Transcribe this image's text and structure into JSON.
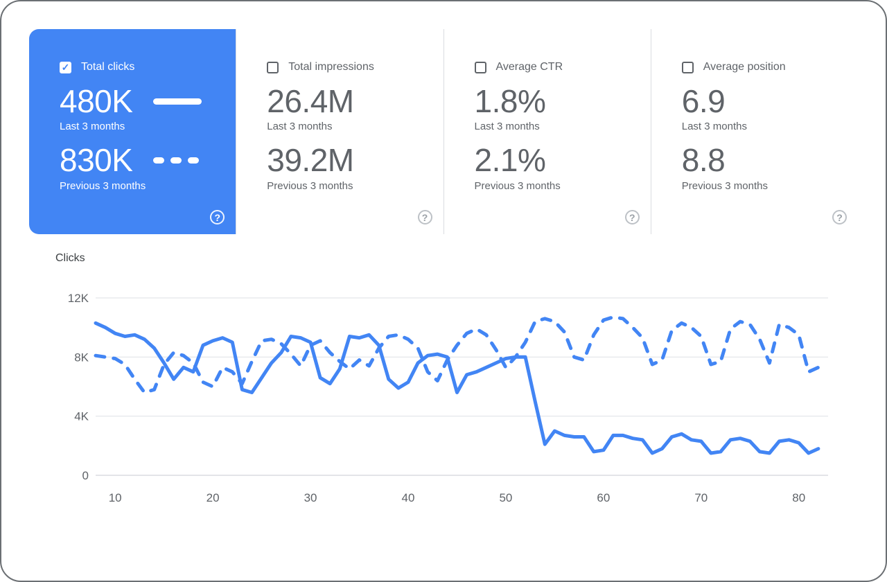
{
  "icons": {
    "check": "✓",
    "question": "?"
  },
  "colors": {
    "accent": "#4285f4",
    "grid": "#e8eaed",
    "value_gray": "#5f6368"
  },
  "metrics": [
    {
      "label": "Total clicks",
      "checked": true,
      "selected": true,
      "value_recent": "480K",
      "period_recent": "Last 3 months",
      "value_previous": "830K",
      "period_previous": "Previous 3 months"
    },
    {
      "label": "Total impressions",
      "checked": false,
      "selected": false,
      "value_recent": "26.4M",
      "period_recent": "Last 3 months",
      "value_previous": "39.2M",
      "period_previous": "Previous 3 months"
    },
    {
      "label": "Average CTR",
      "checked": false,
      "selected": false,
      "value_recent": "1.8%",
      "period_recent": "Last 3 months",
      "value_previous": "2.1%",
      "period_previous": "Previous 3 months"
    },
    {
      "label": "Average position",
      "checked": false,
      "selected": false,
      "value_recent": "6.9",
      "period_recent": "Last 3 months",
      "value_previous": "8.8",
      "period_previous": "Previous 3 months"
    }
  ],
  "chart": {
    "axis_title": "Clicks"
  },
  "chart_data": {
    "type": "line",
    "title": "Clicks",
    "ylabel": "Clicks",
    "xlim": [
      8,
      83
    ],
    "ylim": [
      0,
      12000
    ],
    "x_ticks": [
      10,
      20,
      30,
      40,
      50,
      60,
      70,
      80
    ],
    "y_ticks": [
      {
        "label": "0",
        "value": 0
      },
      {
        "label": "4K",
        "value": 4000
      },
      {
        "label": "8K",
        "value": 8000
      },
      {
        "label": "12K",
        "value": 12000
      }
    ],
    "grid": true,
    "legend_position": "in-metric-card",
    "x": [
      8,
      9,
      10,
      11,
      12,
      13,
      14,
      15,
      16,
      17,
      18,
      19,
      20,
      21,
      22,
      23,
      24,
      25,
      26,
      27,
      28,
      29,
      30,
      31,
      32,
      33,
      34,
      35,
      36,
      37,
      38,
      39,
      40,
      41,
      42,
      43,
      44,
      45,
      46,
      47,
      48,
      49,
      50,
      51,
      52,
      53,
      54,
      55,
      56,
      57,
      58,
      59,
      60,
      61,
      62,
      63,
      64,
      65,
      66,
      67,
      68,
      69,
      70,
      71,
      72,
      73,
      74,
      75,
      76,
      77,
      78,
      79,
      80,
      81,
      82
    ],
    "series": [
      {
        "name": "Last 3 months",
        "style": "solid",
        "color": "#4285f4",
        "values": [
          10300,
          10000,
          9600,
          9400,
          9500,
          9200,
          8600,
          7600,
          6500,
          7300,
          7000,
          8800,
          9100,
          9300,
          9000,
          5800,
          5600,
          6600,
          7600,
          8300,
          9400,
          9300,
          9000,
          6600,
          6200,
          7200,
          9400,
          9300,
          9500,
          8800,
          6500,
          5900,
          6300,
          7600,
          8100,
          8200,
          8000,
          5600,
          6800,
          7000,
          7300,
          7600,
          7900,
          8000,
          8000,
          5000,
          2100,
          3000,
          2700,
          2600,
          2600,
          1600,
          1700,
          2700,
          2700,
          2500,
          2400,
          1500,
          1800,
          2600,
          2800,
          2400,
          2300,
          1500,
          1600,
          2400,
          2500,
          2300,
          1600,
          1500,
          2300,
          2400,
          2200,
          1500,
          1800
        ]
      },
      {
        "name": "Previous 3 months",
        "style": "dashed",
        "color": "#4285f4",
        "values": [
          8100,
          8000,
          7900,
          7500,
          6500,
          5600,
          5800,
          7500,
          8300,
          8100,
          7600,
          6300,
          6000,
          7300,
          7000,
          6200,
          7700,
          9100,
          9200,
          8900,
          8200,
          7400,
          8800,
          9100,
          8300,
          7700,
          7200,
          7800,
          7400,
          8600,
          9400,
          9500,
          9200,
          8600,
          7000,
          6400,
          7800,
          8800,
          9600,
          9900,
          9500,
          8500,
          7300,
          8000,
          9000,
          10400,
          10600,
          10400,
          9700,
          8000,
          7800,
          9500,
          10500,
          10700,
          10600,
          10000,
          9300,
          7500,
          7800,
          9800,
          10300,
          10000,
          9400,
          7500,
          7700,
          9900,
          10400,
          10200,
          9200,
          7600,
          10200,
          10000,
          9500,
          7000,
          7300
        ]
      }
    ]
  }
}
